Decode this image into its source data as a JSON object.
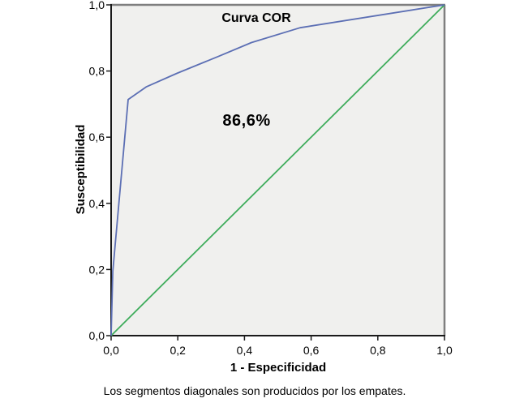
{
  "chart": {
    "title": "Curva COR",
    "annotation": "86,6%",
    "x_axis_label": "1 - Especificidad",
    "y_axis_label": "Susceptibilidad",
    "footnote": "Los segmentos diagonales son producidos por los empates.",
    "x_tick_labels": [
      "0,0",
      "0,2",
      "0,4",
      "0,6",
      "0,8",
      "1,0"
    ],
    "y_tick_labels": [
      "0,0",
      "0,2",
      "0,4",
      "0,6",
      "0,8",
      "1,0"
    ],
    "colors": {
      "roc_curve": "#5C6FB4",
      "reference_line": "#3EAC5B",
      "plot_background": "#F0F0EE",
      "frame_gray": "#7F7F7F",
      "axis_black": "#1A1A1A",
      "text": "#000000"
    }
  },
  "chart_data": {
    "type": "line",
    "title": "Curva COR",
    "xlabel": "1 - Especificidad",
    "ylabel": "Susceptibilidad",
    "xlim": [
      0,
      1
    ],
    "ylim": [
      0,
      1
    ],
    "x_ticks": [
      0,
      0.2,
      0.4,
      0.6,
      0.8,
      1.0
    ],
    "y_ticks": [
      0,
      0.2,
      0.4,
      0.6,
      0.8,
      1.0
    ],
    "grid": false,
    "legend": "none",
    "annotation": {
      "text": "86,6%",
      "meaning": "area under curve",
      "x": 0.41,
      "y": 0.65
    },
    "series": [
      {
        "name": "Curva COR",
        "color": "#5C6FB4",
        "points": [
          [
            0,
            0
          ],
          [
            0.005,
            0.195
          ],
          [
            0.051,
            0.714
          ],
          [
            0.105,
            0.752
          ],
          [
            0.197,
            0.793
          ],
          [
            0.324,
            0.845
          ],
          [
            0.421,
            0.886
          ],
          [
            0.567,
            0.931
          ],
          [
            1.0,
            1.0
          ]
        ]
      },
      {
        "name": "Línea de referencia",
        "color": "#3EAC5B",
        "points": [
          [
            0,
            0
          ],
          [
            1.0,
            1.0
          ]
        ]
      }
    ],
    "footnote": "Los segmentos diagonales son producidos por los empates."
  }
}
